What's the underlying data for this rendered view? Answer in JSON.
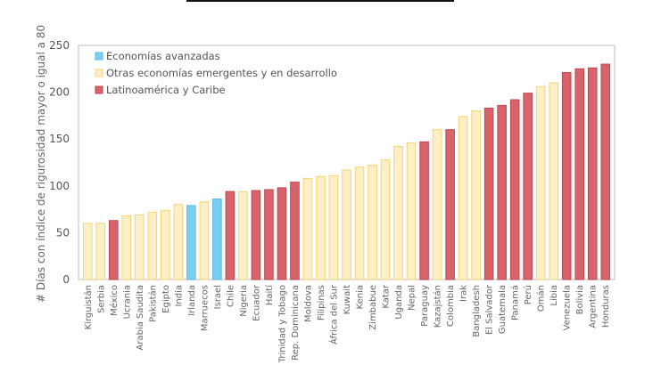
{
  "chart_data": {
    "type": "bar",
    "title": "",
    "xlabel": "",
    "ylabel": "# Días con índice de rigurosidad mayor o igual a 80",
    "ylim": [
      0,
      250
    ],
    "yticks": [
      0,
      50,
      100,
      150,
      200,
      250
    ],
    "grid": false,
    "legend_position": "top-left",
    "legend": [
      {
        "key": "adv",
        "label": "Economías avanzadas",
        "color": "#7ACFF0",
        "border": "#5DB8E3"
      },
      {
        "key": "emg",
        "label": "Otras economías emergentes y en desarrollo",
        "color": "#FEF0C4",
        "border": "#F2D477"
      },
      {
        "key": "lac",
        "label": "Latinoamérica y Caribe",
        "color": "#D9636A",
        "border": "#B84A52"
      }
    ],
    "categories": [
      "Kirguistán",
      "Serbia",
      "México",
      "Ucrania",
      "Arabia Saudita",
      "Pakistán",
      "Egipto",
      "India",
      "Irlanda",
      "Marruecos",
      "Israel",
      "Chile",
      "Nigeria",
      "Ecuador",
      "Haití",
      "Trinidad y Tobago",
      "Rep. Dominicana",
      "Moldova",
      "Filipinas",
      "África del Sur",
      "Kuwait",
      "Kenia",
      "Zimbabue",
      "Katar",
      "Uganda",
      "Nepal",
      "Paraguay",
      "Kazajstán",
      "Colombia",
      "Irak",
      "Bangladesh",
      "El Salvador",
      "Guatemala",
      "Panamá",
      "Perú",
      "Omán",
      "Libia",
      "Venezuela",
      "Bolivia",
      "Argentina",
      "Honduras"
    ],
    "values": [
      60,
      60,
      63,
      68,
      69,
      72,
      74,
      80,
      79,
      83,
      86,
      94,
      94,
      95,
      96,
      98,
      104,
      108,
      110,
      111,
      117,
      120,
      122,
      128,
      142,
      146,
      147,
      160,
      160,
      174,
      180,
      183,
      186,
      192,
      199,
      206,
      210,
      221,
      225,
      226,
      230
    ],
    "groups": [
      "emg",
      "emg",
      "lac",
      "emg",
      "emg",
      "emg",
      "emg",
      "emg",
      "adv",
      "emg",
      "adv",
      "lac",
      "emg",
      "lac",
      "lac",
      "lac",
      "lac",
      "emg",
      "emg",
      "emg",
      "emg",
      "emg",
      "emg",
      "emg",
      "emg",
      "emg",
      "lac",
      "emg",
      "lac",
      "emg",
      "emg",
      "lac",
      "lac",
      "lac",
      "lac",
      "emg",
      "emg",
      "lac",
      "lac",
      "lac",
      "lac"
    ]
  }
}
